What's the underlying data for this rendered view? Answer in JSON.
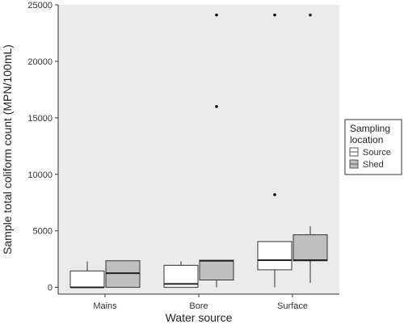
{
  "chart_data": {
    "type": "box",
    "xlabel": "Water source",
    "ylabel": "Sample total coliform count (MPN/100mL)",
    "categories": [
      "Mains",
      "Bore",
      "Surface"
    ],
    "ylim": [
      -600,
      25000
    ],
    "yticks": [
      0,
      5000,
      10000,
      15000,
      20000,
      25000
    ],
    "grid": false,
    "legend": {
      "title": "Sampling\nlocation",
      "position": "right",
      "entries": [
        "Source",
        "Shed"
      ]
    },
    "series": [
      {
        "name": "Source",
        "color": "#ffffff",
        "boxes": [
          {
            "category": "Mains",
            "whisker_low": 0,
            "q1": 0,
            "median": 0,
            "q3": 1450,
            "whisker_high": 2300,
            "outliers": []
          },
          {
            "category": "Bore",
            "whisker_low": 0,
            "q1": 0,
            "median": 300,
            "q3": 1950,
            "whisker_high": 2300,
            "outliers": []
          },
          {
            "category": "Surface",
            "whisker_low": 0,
            "q1": 1550,
            "median": 2400,
            "q3": 4050,
            "whisker_high": 4050,
            "outliers": [
              8200,
              24100
            ]
          }
        ]
      },
      {
        "name": "Shed",
        "color": "#bfbfbf",
        "boxes": [
          {
            "category": "Mains",
            "whisker_low": 0,
            "q1": 0,
            "median": 1250,
            "q3": 2350,
            "whisker_high": 2350,
            "outliers": []
          },
          {
            "category": "Bore",
            "whisker_low": 0,
            "q1": 650,
            "median": 2350,
            "q3": 2400,
            "whisker_high": 2400,
            "outliers": [
              16000,
              24100
            ]
          },
          {
            "category": "Surface",
            "whisker_low": 400,
            "q1": 2350,
            "median": 2400,
            "q3": 4650,
            "whisker_high": 5400,
            "outliers": [
              24100
            ]
          }
        ]
      }
    ]
  }
}
